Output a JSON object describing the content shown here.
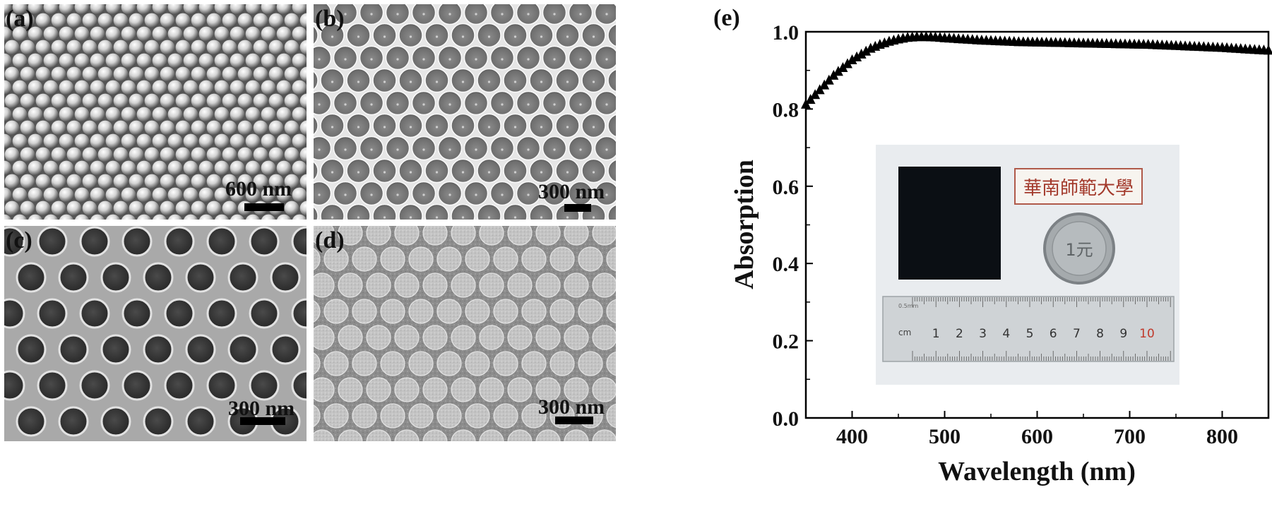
{
  "panels": {
    "a": {
      "label": "(a)",
      "scalebar": "600 nm",
      "pattern": "close-packed-spheres"
    },
    "b": {
      "label": "(b)",
      "scalebar": "300 nm",
      "pattern": "hexagonal-bowls"
    },
    "c": {
      "label": "(c)",
      "scalebar": "300 nm",
      "pattern": "hexagonal-holes"
    },
    "d": {
      "label": "(d)",
      "scalebar": "300 nm",
      "pattern": "hexagonal-discs"
    }
  },
  "photo": {
    "sign_text": "華南師範大學",
    "coin_text": "1元",
    "ruler_unit": "cm",
    "ruler_numbers": [
      "1",
      "2",
      "3",
      "4",
      "5",
      "6",
      "7",
      "8",
      "9",
      "10"
    ],
    "ruler_small_text": "0.5mm"
  },
  "chart_data": {
    "type": "line",
    "panel_label": "(e)",
    "title": "",
    "xlabel": "Wavelength (nm)",
    "ylabel": "Absorption",
    "xlim": [
      350,
      850
    ],
    "ylim": [
      0.0,
      1.0
    ],
    "xticks": [
      400,
      500,
      600,
      700,
      800
    ],
    "yticks": [
      0.0,
      0.2,
      0.4,
      0.6,
      0.8,
      1.0
    ],
    "ytick_labels": [
      "0.0",
      "0.2",
      "0.4",
      "0.6",
      "0.8",
      "1.0"
    ],
    "marker": "triangle",
    "grid": false,
    "series": [
      {
        "x": [
          350,
          360,
          370,
          380,
          390,
          400,
          410,
          420,
          430,
          440,
          450,
          460,
          470,
          480,
          490,
          500,
          520,
          540,
          560,
          580,
          600,
          620,
          640,
          660,
          680,
          700,
          720,
          740,
          760,
          780,
          800,
          820,
          840,
          850
        ],
        "y": [
          0.81,
          0.835,
          0.86,
          0.885,
          0.905,
          0.925,
          0.94,
          0.955,
          0.965,
          0.973,
          0.979,
          0.983,
          0.985,
          0.985,
          0.984,
          0.982,
          0.979,
          0.976,
          0.974,
          0.972,
          0.971,
          0.97,
          0.969,
          0.968,
          0.967,
          0.966,
          0.965,
          0.963,
          0.961,
          0.959,
          0.957,
          0.954,
          0.951,
          0.95
        ]
      }
    ],
    "colors": {
      "marker": "#000000"
    }
  }
}
